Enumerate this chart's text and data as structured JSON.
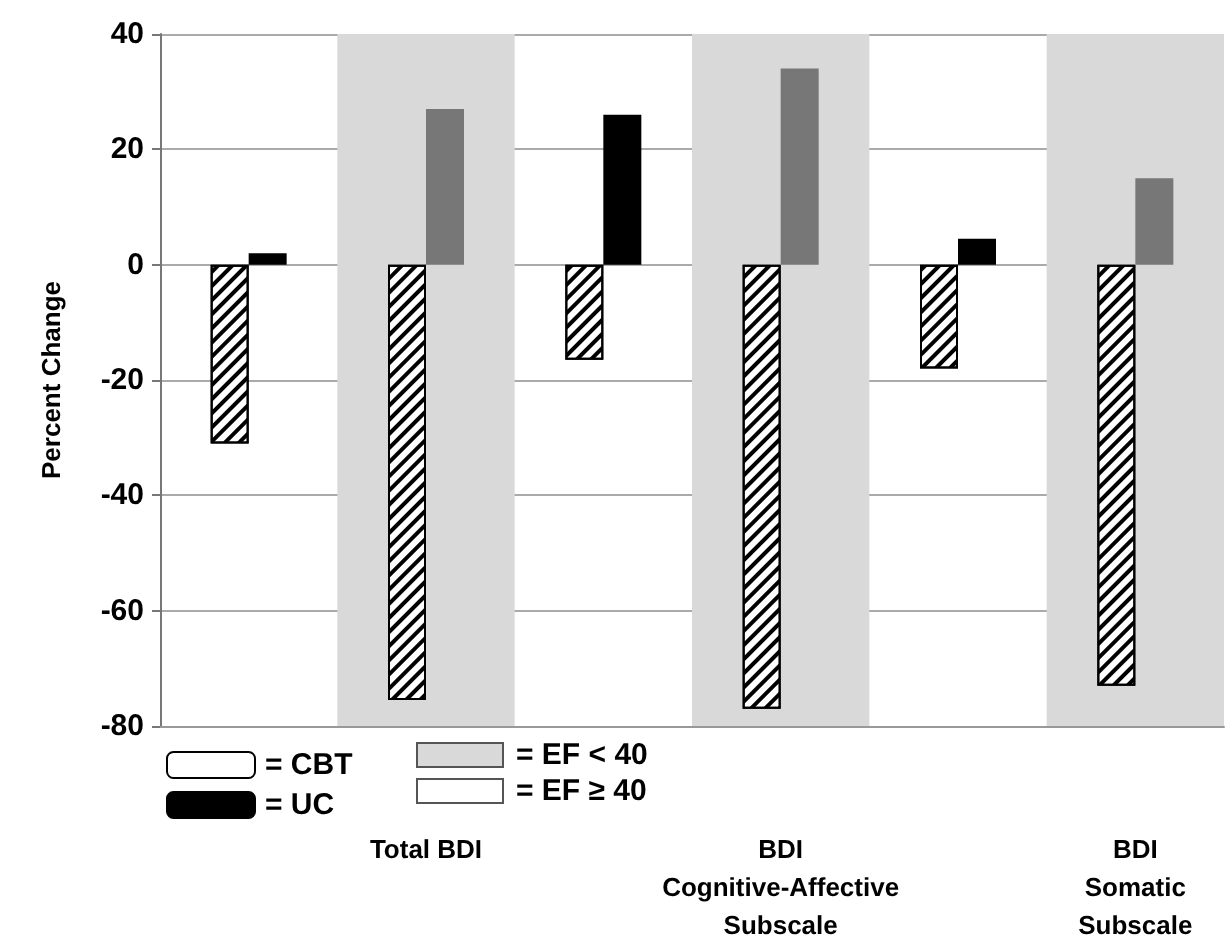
{
  "chart_data": {
    "type": "bar",
    "ylabel": "Percent Change",
    "categories": [
      null,
      "Total BDI",
      null,
      "BDI\nCognitive-Affective\nSubscale",
      null,
      "BDI\nSomatic\nSubscale"
    ],
    "series": [
      {
        "name": "= CBT",
        "color": "#ffffff",
        "values": [
          -31,
          -75.5,
          -16.5,
          -77,
          -18,
          -73
        ]
      },
      {
        "name": "= UC",
        "colors": [
          "#000000",
          "#777777",
          "#000000",
          "#777777",
          "#000000",
          "#777777"
        ],
        "values": [
          2,
          27,
          26,
          34,
          4.5,
          15
        ]
      }
    ],
    "bands": [
      {
        "axis": "x",
        "from": "Total BDI",
        "to": "Total BDI",
        "label": "= EF < 40",
        "color": "#d9d9d9"
      },
      {
        "axis": "x",
        "from": "BDI\nCognitive-Affective\nSubscale",
        "to": "BDI\nCognitive-Affective\nSubscale",
        "color": "#d9d9d9"
      },
      {
        "axis": "x",
        "from": "BDI\nSomatic\nSubscale",
        "to": "BDI\nSomatic\nSubscale",
        "color": "#d9d9d9"
      }
    ],
    "annotations": [
      "= EF ≥ 40"
    ],
    "ylim": [
      -80,
      40
    ],
    "yticks": [
      -80,
      -60,
      -40,
      -20,
      0,
      20,
      40
    ],
    "grid": "y",
    "legend": "bottom left"
  }
}
